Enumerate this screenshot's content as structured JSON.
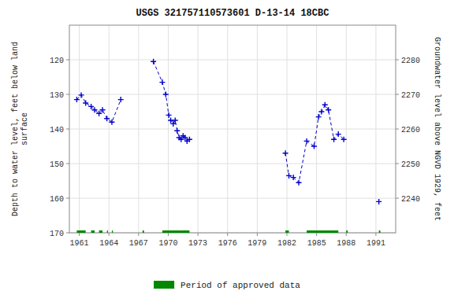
{
  "chart_data": {
    "type": "line",
    "title": "USGS 321757110573601 D-13-14 18CBC",
    "y_label": "Depth to water level, feet below land\n surface",
    "y2_label": "Groundwater level above NGVD 1929, feet",
    "xlim": [
      1960.0,
      1993.0
    ],
    "xticks": [
      1961,
      1964,
      1967,
      1970,
      1973,
      1976,
      1979,
      1982,
      1985,
      1988,
      1991
    ],
    "ylim": [
      170,
      110
    ],
    "yticks": [
      120,
      130,
      140,
      150,
      160,
      170
    ],
    "y2lim": [
      2230,
      2290
    ],
    "y2ticks": [
      2240,
      2250,
      2260,
      2270,
      2280
    ],
    "grid": true,
    "legend": "bottom",
    "series": [
      {
        "color": "#0000cc",
        "marker": "plus",
        "line_style": "dashed",
        "x": [
          1960.75,
          1961.2,
          1961.65,
          1962.2,
          1962.55,
          1963.0,
          1963.35,
          1963.8,
          1964.3,
          1965.2
        ],
        "values": [
          131.5,
          130.2,
          132.5,
          133.5,
          134.5,
          135.5,
          134.5,
          137.0,
          138.0,
          131.5
        ]
      },
      {
        "color": "#0000cc",
        "marker": "plus",
        "line_style": "dashed",
        "x": [
          1968.5,
          1969.4,
          1969.75,
          1970.05,
          1970.25,
          1970.5,
          1970.7,
          1970.9,
          1971.1,
          1971.3,
          1971.5,
          1971.7,
          1971.9,
          1972.15
        ],
        "values": [
          120.5,
          126.5,
          130.0,
          136.0,
          137.5,
          138.5,
          137.5,
          140.5,
          142.5,
          143.0,
          142.0,
          142.5,
          143.5,
          143.0
        ]
      },
      {
        "color": "#0000cc",
        "marker": "plus",
        "line_style": "dashed",
        "x": [
          1981.85,
          1982.2,
          1982.65,
          1983.2,
          1984.0,
          1984.75,
          1985.2,
          1985.5,
          1985.85,
          1986.2,
          1986.75,
          1987.2,
          1987.75
        ],
        "values": [
          147.0,
          153.5,
          154.0,
          155.5,
          143.5,
          145.0,
          136.5,
          135.0,
          133.0,
          134.5,
          143.0,
          141.5,
          143.0
        ]
      },
      {
        "color": "#0000cc",
        "marker": "plus",
        "line_style": "dashed",
        "x": [
          1991.3
        ],
        "values": [
          161.0
        ]
      },
      {
        "name": "Period of approved data",
        "type": "span",
        "color": "#008800",
        "x": [
          [
            1960.75,
            1961.65
          ],
          [
            1962.2,
            1962.55
          ],
          [
            1963.0,
            1963.35
          ],
          [
            1963.8,
            1963.9
          ],
          [
            1964.3,
            1964.4
          ],
          [
            1967.4,
            1967.55
          ],
          [
            1969.4,
            1972.15
          ],
          [
            1981.85,
            1982.2
          ],
          [
            1984.0,
            1987.2
          ],
          [
            1988.0,
            1988.15
          ],
          [
            1991.3,
            1991.45
          ]
        ]
      }
    ]
  }
}
